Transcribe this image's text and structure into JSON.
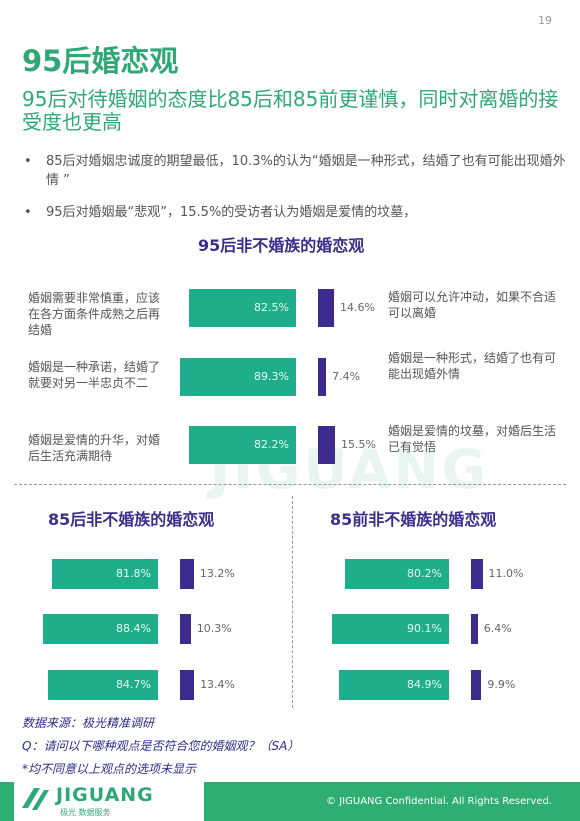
{
  "page": {
    "number": "19",
    "title": "95后婚恋观",
    "subtitle": "95后对待婚姻的态度比85后和85前更谨慎，同时对离婚的接受度也更高",
    "bullets": [
      "85后对婚姻忠诚度的期望最低，10.3%的认为“婚姻是一种形式，结婚了也有可能出现婚外情 ”",
      "95后对婚姻最“悲观”，15.5%的受访者认为婚姻是爱情的坟墓，"
    ],
    "bullet_symbol": "•",
    "notes": [
      "数据来源：极光精准调研",
      "Q：请问以下哪种观点是否符合您的婚姻观？（SA）",
      "*均不同意以上观点的选项未显示"
    ],
    "footer": "© JIGUANG  Confidential. All Rights Reserved.",
    "logo": {
      "name": "JIGUANG",
      "tagline": "极光 数据服务"
    },
    "watermark": "JIGUANG",
    "colors": {
      "brand_green": "#2fa877",
      "bar_green": "#1fae8c",
      "bar_purple": "#3d2c8e",
      "heading_purple": "#3a2f8c",
      "note_blue": "#2c2c8a"
    }
  },
  "chart_data": [
    {
      "type": "bar",
      "title": "95后非不婚族的婚恋观",
      "left_labels": [
        "婚姻需要非常慎重，应该在各方面条件成熟之后再结婚",
        "婚姻是一种承诺，结婚了就要对另一半忠贞不二",
        "婚姻是爱情的升华，对婚后生活充满期待"
      ],
      "right_labels": [
        "婚姻可以允许冲动，如果不合适可以离婚",
        "婚姻是一种形式，结婚了也有可能出现婚外情",
        "婚姻是爱情的坟墓，对婚后生活已有觉悟"
      ],
      "series": [
        {
          "values": [
            82.5,
            89.3,
            82.2
          ],
          "labels": [
            "82.5%",
            "89.3%",
            "82.2%"
          ]
        },
        {
          "values": [
            14.6,
            7.4,
            15.5
          ],
          "labels": [
            "14.6%",
            "7.4%",
            "15.5%"
          ]
        }
      ]
    },
    {
      "type": "bar",
      "title": "85后非不婚族的婚恋观",
      "series": [
        {
          "values": [
            81.8,
            88.4,
            84.7
          ],
          "labels": [
            "81.8%",
            "88.4%",
            "84.7%"
          ]
        },
        {
          "values": [
            13.2,
            10.3,
            13.4
          ],
          "labels": [
            "13.2%",
            "10.3%",
            "13.4%"
          ]
        }
      ]
    },
    {
      "type": "bar",
      "title": "85前非不婚族的婚恋观",
      "series": [
        {
          "values": [
            80.2,
            90.1,
            84.9
          ],
          "labels": [
            "80.2%",
            "90.1%",
            "84.9%"
          ]
        },
        {
          "values": [
            11.0,
            6.4,
            9.9
          ],
          "labels": [
            "11.0%",
            "6.4%",
            "9.9%"
          ]
        }
      ]
    }
  ]
}
